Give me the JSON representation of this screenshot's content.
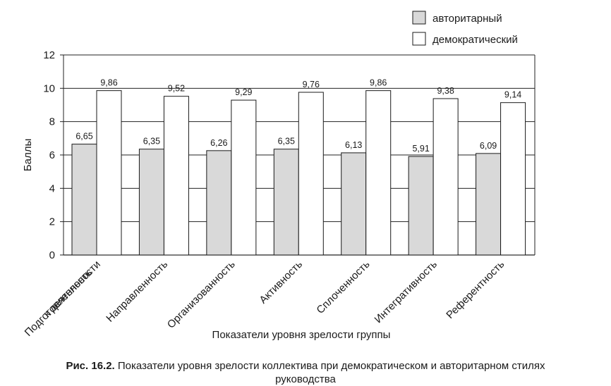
{
  "chart_data": {
    "type": "bar",
    "title": "",
    "xlabel": "Показатели уровня зрелости группы",
    "ylabel": "Баллы",
    "ylim": [
      0,
      12
    ],
    "yticks": [
      0,
      2,
      4,
      6,
      8,
      10,
      12
    ],
    "grid": true,
    "legend_position": "top-right",
    "categories": [
      [
        "Подготовленность",
        "к деятельности"
      ],
      [
        "Направленность"
      ],
      [
        "Организованность"
      ],
      [
        "Активность"
      ],
      [
        "Сплоченность"
      ],
      [
        "Интегративность"
      ],
      [
        "Референтность"
      ]
    ],
    "series": [
      {
        "name": "авторитарный",
        "color": "#d9d9d9",
        "values": [
          6.65,
          6.35,
          6.26,
          6.35,
          6.13,
          5.91,
          6.09
        ],
        "labels": [
          "6,65",
          "6,35",
          "6,26",
          "6,35",
          "6,13",
          "5,91",
          "6,09"
        ]
      },
      {
        "name": "демократический",
        "color": "#ffffff",
        "values": [
          9.86,
          9.52,
          9.29,
          9.76,
          9.86,
          9.38,
          9.14
        ],
        "labels": [
          "9,86",
          "9,52",
          "9,29",
          "9,76",
          "9,86",
          "9,38",
          "9,14"
        ]
      }
    ]
  },
  "caption": {
    "label": "Рис. 16.2.",
    "text": " Показатели уровня зрелости коллектива при демократическом и авторитарном стилях руководства"
  }
}
